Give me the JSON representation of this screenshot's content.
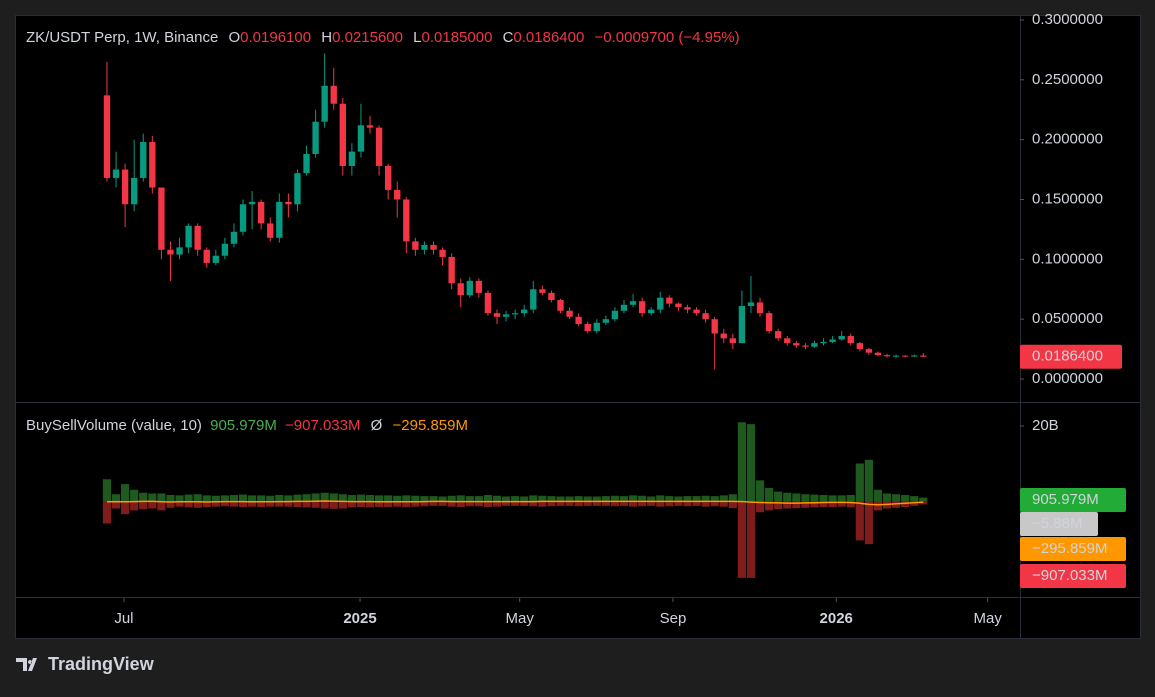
{
  "header": {
    "symbol": "ZK/USDT Perp, 1W, Binance",
    "o_label": "O",
    "o": "0.0196100",
    "h_label": "H",
    "h": "0.0215600",
    "l_label": "L",
    "l": "0.0185000",
    "c_label": "C",
    "c": "0.0186400",
    "change": "−0.0009700 (−4.95%)"
  },
  "chart_data": [
    {
      "type": "candlestick",
      "up_color": "#089981",
      "down_color": "#f23645",
      "xlim": [
        -10.03,
        100.66
      ],
      "xticks": [
        {
          "value": 1.87,
          "label": "Jul"
        },
        {
          "value": 27.9,
          "label": "2025"
        },
        {
          "value": 45.5,
          "label": "May"
        },
        {
          "value": 62.4,
          "label": "Sep"
        },
        {
          "value": 80.4,
          "label": "2026"
        },
        {
          "value": 97.1,
          "label": "May"
        }
      ],
      "ylim": [
        -0.0192,
        0.3033
      ],
      "yticks": [
        {
          "value": 0,
          "label": "0.0000000"
        },
        {
          "value": 0.05,
          "label": "0.0500000"
        },
        {
          "value": 0.1,
          "label": "0.1000000"
        },
        {
          "value": 0.15,
          "label": "0.1500000"
        },
        {
          "value": 0.2,
          "label": "0.2000000"
        },
        {
          "value": 0.25,
          "label": "0.2500000"
        },
        {
          "value": 0.3,
          "label": "0.3000000"
        }
      ],
      "open": [
        0.237,
        0.168,
        0.175,
        0.146,
        0.168,
        0.198,
        0.16,
        0.108,
        0.104,
        0.11,
        0.128,
        0.108,
        0.097,
        0.103,
        0.113,
        0.123,
        0.146,
        0.148,
        0.13,
        0.118,
        0.148,
        0.146,
        0.172,
        0.188,
        0.215,
        0.245,
        0.23,
        0.178,
        0.19,
        0.212,
        0.21,
        0.178,
        0.158,
        0.15,
        0.115,
        0.108,
        0.112,
        0.108,
        0.102,
        0.08,
        0.07,
        0.082,
        0.072,
        0.055,
        0.052,
        0.054,
        0.055,
        0.058,
        0.075,
        0.072,
        0.066,
        0.057,
        0.052,
        0.046,
        0.04,
        0.047,
        0.05,
        0.057,
        0.062,
        0.065,
        0.055,
        0.058,
        0.068,
        0.063,
        0.06,
        0.058,
        0.055,
        0.05,
        0.038,
        0.034,
        0.03,
        0.061,
        0.064,
        0.055,
        0.04,
        0.034,
        0.03,
        0.028,
        0.027,
        0.03,
        0.031,
        0.033,
        0.036,
        0.03,
        0.025,
        0.022,
        0.02,
        0.019,
        0.0195,
        0.019,
        0.01961
      ],
      "high": [
        0.265,
        0.19,
        0.18,
        0.2,
        0.205,
        0.203,
        0.16,
        0.115,
        0.118,
        0.13,
        0.13,
        0.11,
        0.108,
        0.118,
        0.13,
        0.15,
        0.157,
        0.15,
        0.135,
        0.155,
        0.155,
        0.175,
        0.195,
        0.225,
        0.272,
        0.26,
        0.235,
        0.197,
        0.23,
        0.22,
        0.212,
        0.18,
        0.165,
        0.152,
        0.118,
        0.115,
        0.115,
        0.11,
        0.105,
        0.084,
        0.085,
        0.084,
        0.074,
        0.058,
        0.057,
        0.058,
        0.062,
        0.082,
        0.078,
        0.074,
        0.067,
        0.06,
        0.055,
        0.048,
        0.05,
        0.053,
        0.06,
        0.066,
        0.071,
        0.068,
        0.06,
        0.073,
        0.07,
        0.064,
        0.062,
        0.06,
        0.058,
        0.052,
        0.042,
        0.038,
        0.074,
        0.086,
        0.068,
        0.057,
        0.042,
        0.036,
        0.032,
        0.03,
        0.032,
        0.034,
        0.036,
        0.04,
        0.038,
        0.031,
        0.026,
        0.023,
        0.021,
        0.0205,
        0.02,
        0.0205,
        0.02156
      ],
      "low": [
        0.165,
        0.16,
        0.127,
        0.14,
        0.165,
        0.155,
        0.1,
        0.082,
        0.1,
        0.105,
        0.103,
        0.093,
        0.095,
        0.1,
        0.11,
        0.12,
        0.125,
        0.125,
        0.115,
        0.114,
        0.135,
        0.14,
        0.17,
        0.185,
        0.21,
        0.225,
        0.17,
        0.17,
        0.185,
        0.205,
        0.17,
        0.15,
        0.135,
        0.105,
        0.103,
        0.104,
        0.104,
        0.095,
        0.075,
        0.06,
        0.068,
        0.068,
        0.053,
        0.046,
        0.048,
        0.05,
        0.052,
        0.055,
        0.07,
        0.064,
        0.055,
        0.05,
        0.044,
        0.038,
        0.038,
        0.045,
        0.048,
        0.055,
        0.06,
        0.052,
        0.053,
        0.055,
        0.06,
        0.057,
        0.055,
        0.053,
        0.047,
        0.008,
        0.03,
        0.025,
        0.03,
        0.055,
        0.052,
        0.038,
        0.032,
        0.028,
        0.026,
        0.025,
        0.026,
        0.028,
        0.03,
        0.032,
        0.028,
        0.023,
        0.02,
        0.019,
        0.018,
        0.018,
        0.0182,
        0.0185,
        0.0185
      ],
      "close": [
        0.168,
        0.175,
        0.146,
        0.168,
        0.198,
        0.16,
        0.108,
        0.104,
        0.11,
        0.128,
        0.108,
        0.097,
        0.103,
        0.113,
        0.123,
        0.146,
        0.148,
        0.13,
        0.118,
        0.148,
        0.146,
        0.172,
        0.188,
        0.215,
        0.245,
        0.23,
        0.178,
        0.19,
        0.212,
        0.21,
        0.178,
        0.158,
        0.15,
        0.115,
        0.108,
        0.112,
        0.108,
        0.102,
        0.08,
        0.07,
        0.082,
        0.072,
        0.055,
        0.052,
        0.054,
        0.055,
        0.058,
        0.075,
        0.072,
        0.066,
        0.057,
        0.052,
        0.046,
        0.04,
        0.047,
        0.05,
        0.057,
        0.062,
        0.065,
        0.055,
        0.058,
        0.068,
        0.063,
        0.06,
        0.058,
        0.055,
        0.05,
        0.038,
        0.034,
        0.03,
        0.061,
        0.064,
        0.055,
        0.04,
        0.034,
        0.03,
        0.028,
        0.027,
        0.03,
        0.031,
        0.033,
        0.036,
        0.03,
        0.025,
        0.022,
        0.02,
        0.019,
        0.0195,
        0.019,
        0.0196,
        0.01864
      ],
      "last_label": "0.0186400"
    },
    {
      "type": "bar",
      "title": "BuySellVolume (value, 10)",
      "symbol": "Ø",
      "ylim": [
        -25600,
        25867
      ],
      "yticks": [
        {
          "value": 20000,
          "label": "20B"
        }
      ],
      "series": [
        {
          "color": "#1e5a1e",
          "legend_color": "#4caf50",
          "value_label": "905.979M",
          "values": [
            5800,
            1800,
            4500,
            3000,
            2200,
            2000,
            2000,
            1600,
            1500,
            1700,
            1800,
            1500,
            1400,
            1500,
            1600,
            1700,
            1500,
            1500,
            1400,
            1600,
            1500,
            1700,
            1800,
            2000,
            2200,
            2000,
            1800,
            1600,
            1700,
            1600,
            1500,
            1500,
            1400,
            1500,
            1400,
            1300,
            1300,
            1200,
            1400,
            1500,
            1300,
            1300,
            1600,
            1400,
            1200,
            1300,
            1200,
            1500,
            1400,
            1300,
            1200,
            1200,
            1300,
            1200,
            1200,
            1300,
            1400,
            1300,
            1500,
            1400,
            1200,
            1500,
            1300,
            1200,
            1300,
            1300,
            1400,
            1300,
            1500,
            1800,
            21000,
            20500,
            5500,
            3500,
            2500,
            2200,
            2000,
            1800,
            1700,
            1600,
            1500,
            1500,
            1600,
            10000,
            11000,
            3000,
            2000,
            1800,
            1600,
            1300,
            905.979
          ]
        },
        {
          "color": "#801c1c",
          "legend_color": "#f23645",
          "value_label": "−907.033M",
          "values": [
            -6000,
            -2000,
            -3500,
            -2500,
            -2200,
            -2000,
            -2500,
            -1800,
            -1500,
            -1700,
            -1800,
            -1600,
            -1500,
            -1400,
            -1500,
            -1600,
            -1500,
            -1600,
            -1500,
            -1500,
            -1500,
            -1600,
            -1700,
            -1800,
            -2000,
            -2100,
            -2000,
            -1700,
            -1600,
            -1700,
            -1600,
            -1600,
            -1500,
            -1600,
            -1500,
            -1400,
            -1300,
            -1300,
            -1500,
            -1600,
            -1400,
            -1400,
            -1600,
            -1500,
            -1300,
            -1300,
            -1300,
            -1400,
            -1500,
            -1400,
            -1300,
            -1300,
            -1400,
            -1300,
            -1300,
            -1300,
            -1400,
            -1300,
            -1500,
            -1400,
            -1300,
            -1500,
            -1400,
            -1300,
            -1400,
            -1300,
            -1500,
            -1400,
            -1500,
            -1900,
            -20500,
            -20500,
            -3000,
            -2500,
            -2200,
            -2000,
            -1900,
            -1800,
            -1700,
            -1600,
            -1600,
            -1500,
            -1700,
            -10500,
            -11500,
            -2500,
            -2000,
            -1800,
            -1600,
            -1300,
            -907.033
          ]
        },
        {
          "type": "line",
          "color": "#ff9800",
          "value_label": "−295.859M",
          "values": [
            -200,
            -150,
            -200,
            -150,
            -100,
            -100,
            -200,
            -250,
            -200,
            -200,
            -200,
            -250,
            -200,
            -150,
            -150,
            -150,
            -200,
            -200,
            -200,
            -150,
            -150,
            -100,
            -100,
            -50,
            0,
            -50,
            -100,
            -150,
            -150,
            -150,
            -200,
            -200,
            -200,
            -200,
            -200,
            -150,
            -100,
            -100,
            -150,
            -150,
            -150,
            -150,
            -150,
            -150,
            -150,
            -150,
            -150,
            -150,
            -100,
            -100,
            -100,
            -100,
            -100,
            -100,
            -100,
            -100,
            -100,
            -100,
            -100,
            -100,
            -100,
            -100,
            -100,
            -100,
            -100,
            -100,
            -100,
            -100,
            -100,
            -100,
            -150,
            -300,
            -400,
            -450,
            -500,
            -550,
            -550,
            -500,
            -450,
            -400,
            -350,
            -350,
            -400,
            -600,
            -900,
            -1000,
            -900,
            -750,
            -600,
            -450,
            -295.859
          ]
        }
      ],
      "badges": [
        {
          "label": "905.979M",
          "color": "#22ab36",
          "text_color": "#ffffff"
        },
        {
          "label": "−5.88M",
          "color": "#c8c8c8",
          "text_color": "#000000"
        },
        {
          "label": "−295.859M",
          "color": "#ff9800",
          "text_color": "#000000"
        },
        {
          "label": "−907.033M",
          "color": "#f23645",
          "text_color": "#ffffff"
        }
      ]
    }
  ],
  "footer": {
    "brand": "TradingView"
  }
}
